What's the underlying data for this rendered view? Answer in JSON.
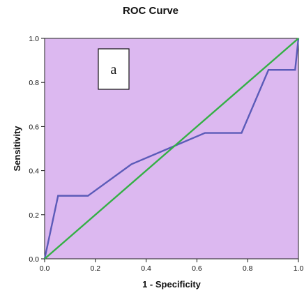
{
  "chart_data": {
    "type": "line",
    "title": "ROC Curve",
    "xlabel": "1 - Specificity",
    "ylabel": "Sensitivity",
    "xlim": [
      0,
      1
    ],
    "ylim": [
      0,
      1
    ],
    "x_ticks": [
      "0.0",
      "0.2",
      "0.4",
      "0.6",
      "0.8",
      "1.0"
    ],
    "y_ticks": [
      "0.0",
      "0.2",
      "0.4",
      "0.6",
      "0.8",
      "1.0"
    ],
    "grid": false,
    "annotation": "a",
    "series": [
      {
        "color": "#5b5bb8",
        "points": [
          [
            0.0,
            0.0
          ],
          [
            0.053,
            0.286
          ],
          [
            0.171,
            0.286
          ],
          [
            0.342,
            0.429
          ],
          [
            0.632,
            0.571
          ],
          [
            0.776,
            0.571
          ],
          [
            0.882,
            0.857
          ],
          [
            0.987,
            0.857
          ],
          [
            1.0,
            1.0
          ]
        ]
      },
      {
        "color": "#33b044",
        "points": [
          [
            0.0,
            0.0
          ],
          [
            1.0,
            1.0
          ]
        ]
      }
    ],
    "plot_background": "#dcb8f0"
  }
}
